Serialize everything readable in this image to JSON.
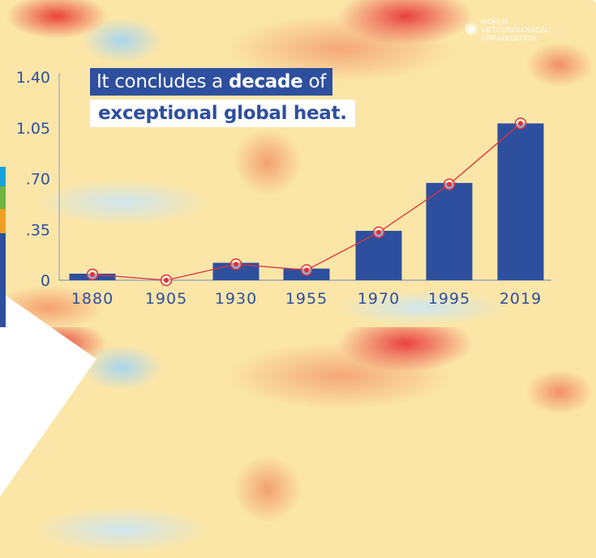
{
  "headline": {
    "line1_pre": "It concludes a ",
    "line1_bold": "decade",
    "line1_post": " of",
    "line2": "exceptional global heat."
  },
  "logo": {
    "text": "WORLD METEOROLOGICAL ORGANIZATION"
  },
  "colors": {
    "bar": "#2e4f9e",
    "line": "#e0303a",
    "axis_text": "#2e4f9e"
  },
  "chart_data": {
    "type": "bar",
    "title": "It concludes a decade of exceptional global heat.",
    "categories": [
      "1880",
      "1905",
      "1930",
      "1955",
      "1970",
      "1995",
      "2019"
    ],
    "values": [
      0.045,
      0.0,
      0.12,
      0.08,
      0.34,
      0.67,
      1.08
    ],
    "line_values": [
      0.04,
      0.0,
      0.11,
      0.07,
      0.33,
      0.66,
      1.08
    ],
    "yticks": [
      "0",
      ".35",
      ".70",
      "1.05",
      "1.40"
    ],
    "ytick_values": [
      0,
      0.35,
      0.7,
      1.05,
      1.4
    ],
    "ylim": [
      0,
      1.4
    ],
    "xlabel": "",
    "ylabel": ""
  }
}
